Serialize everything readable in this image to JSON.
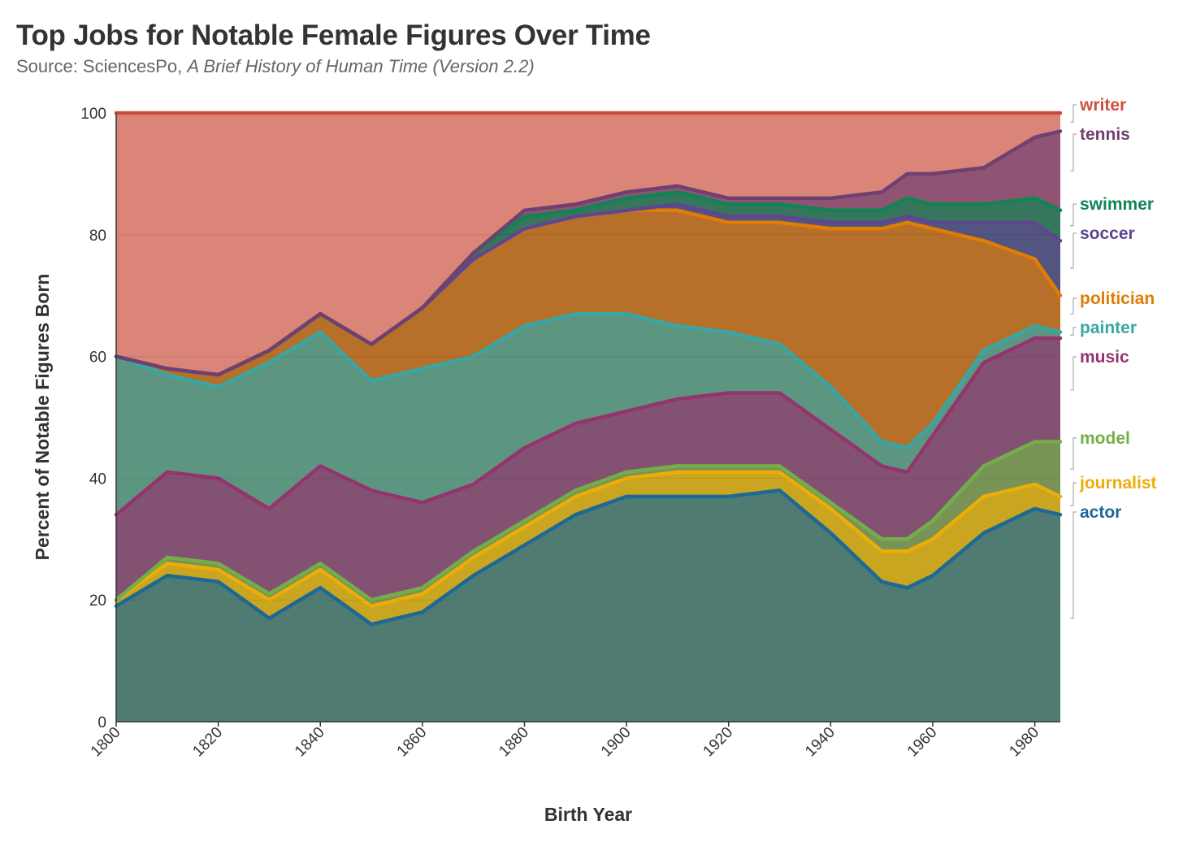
{
  "title": "Top Jobs for Notable Female Figures Over Time",
  "subtitle_prefix": "Source: SciencesPo, ",
  "subtitle_italic": "A Brief History of Human Time (Version 2.2)",
  "chart_data": {
    "type": "area",
    "stacked": true,
    "xlabel": "Birth Year",
    "ylabel": "Percent of Notable Figures Born",
    "xlim": [
      1800,
      1985
    ],
    "ylim": [
      0,
      100
    ],
    "x_ticks": [
      1800,
      1820,
      1840,
      1860,
      1880,
      1900,
      1920,
      1940,
      1960,
      1980
    ],
    "y_ticks": [
      0,
      20,
      40,
      60,
      80,
      100
    ],
    "grid": "horizontal",
    "legend": "right (direct labels)",
    "x": [
      1800,
      1810,
      1820,
      1830,
      1840,
      1850,
      1860,
      1870,
      1880,
      1890,
      1900,
      1910,
      1920,
      1930,
      1940,
      1950,
      1955,
      1960,
      1970,
      1980,
      1985
    ],
    "series": [
      {
        "name": "actor",
        "color": "#1d6996",
        "values": [
          19,
          24,
          23,
          17,
          22,
          16,
          18,
          24,
          29,
          34,
          37,
          37,
          37,
          38,
          31,
          23,
          22,
          24,
          31,
          35,
          34
        ]
      },
      {
        "name": "journalist",
        "color": "#edad08",
        "values": [
          1,
          2,
          2,
          3,
          3,
          3,
          3,
          3,
          3,
          3,
          3,
          4,
          4,
          3,
          4,
          5,
          6,
          6,
          6,
          4,
          3
        ]
      },
      {
        "name": "model",
        "color": "#73af48",
        "values": [
          0,
          1,
          1,
          1,
          1,
          1,
          1,
          1,
          1,
          1,
          1,
          1,
          1,
          1,
          1,
          2,
          2,
          3,
          5,
          7,
          9
        ]
      },
      {
        "name": "music",
        "color": "#94346e",
        "values": [
          14,
          14,
          14,
          14,
          16,
          18,
          14,
          11,
          12,
          11,
          10,
          11,
          12,
          12,
          12,
          12,
          11,
          14,
          17,
          17,
          17
        ]
      },
      {
        "name": "painter",
        "color": "#38a6a5",
        "values": [
          26,
          16,
          15,
          24,
          22,
          18,
          22,
          21,
          20,
          18,
          16,
          12,
          10,
          8,
          7,
          4,
          4,
          2,
          2,
          2,
          1
        ]
      },
      {
        "name": "politician",
        "color": "#e17c05",
        "values": [
          0,
          1,
          2,
          2,
          3,
          6,
          10,
          16,
          16,
          16,
          17,
          19,
          18,
          20,
          26,
          35,
          37,
          32,
          18,
          11,
          6
        ]
      },
      {
        "name": "soccer",
        "color": "#5f4690",
        "values": [
          0,
          0,
          0,
          0,
          0,
          0,
          0,
          0,
          0,
          0,
          0,
          1,
          1,
          1,
          1,
          1,
          1,
          1,
          3,
          6,
          9
        ]
      },
      {
        "name": "swimmer",
        "color": "#0f8554",
        "values": [
          0,
          0,
          0,
          0,
          0,
          0,
          0,
          1,
          2,
          1,
          2,
          2,
          2,
          2,
          2,
          2,
          3,
          3,
          3,
          4,
          5
        ]
      },
      {
        "name": "tennis",
        "color": "#6f4070",
        "values": [
          0,
          0,
          0,
          0,
          0,
          0,
          0,
          0,
          1,
          1,
          1,
          1,
          1,
          1,
          2,
          3,
          4,
          5,
          6,
          10,
          13
        ]
      },
      {
        "name": "writer",
        "color": "#cc503e",
        "values": [
          40,
          42,
          43,
          39,
          33,
          38,
          32,
          23,
          16,
          15,
          13,
          12,
          14,
          14,
          14,
          13,
          10,
          10,
          9,
          4,
          3
        ]
      }
    ]
  }
}
